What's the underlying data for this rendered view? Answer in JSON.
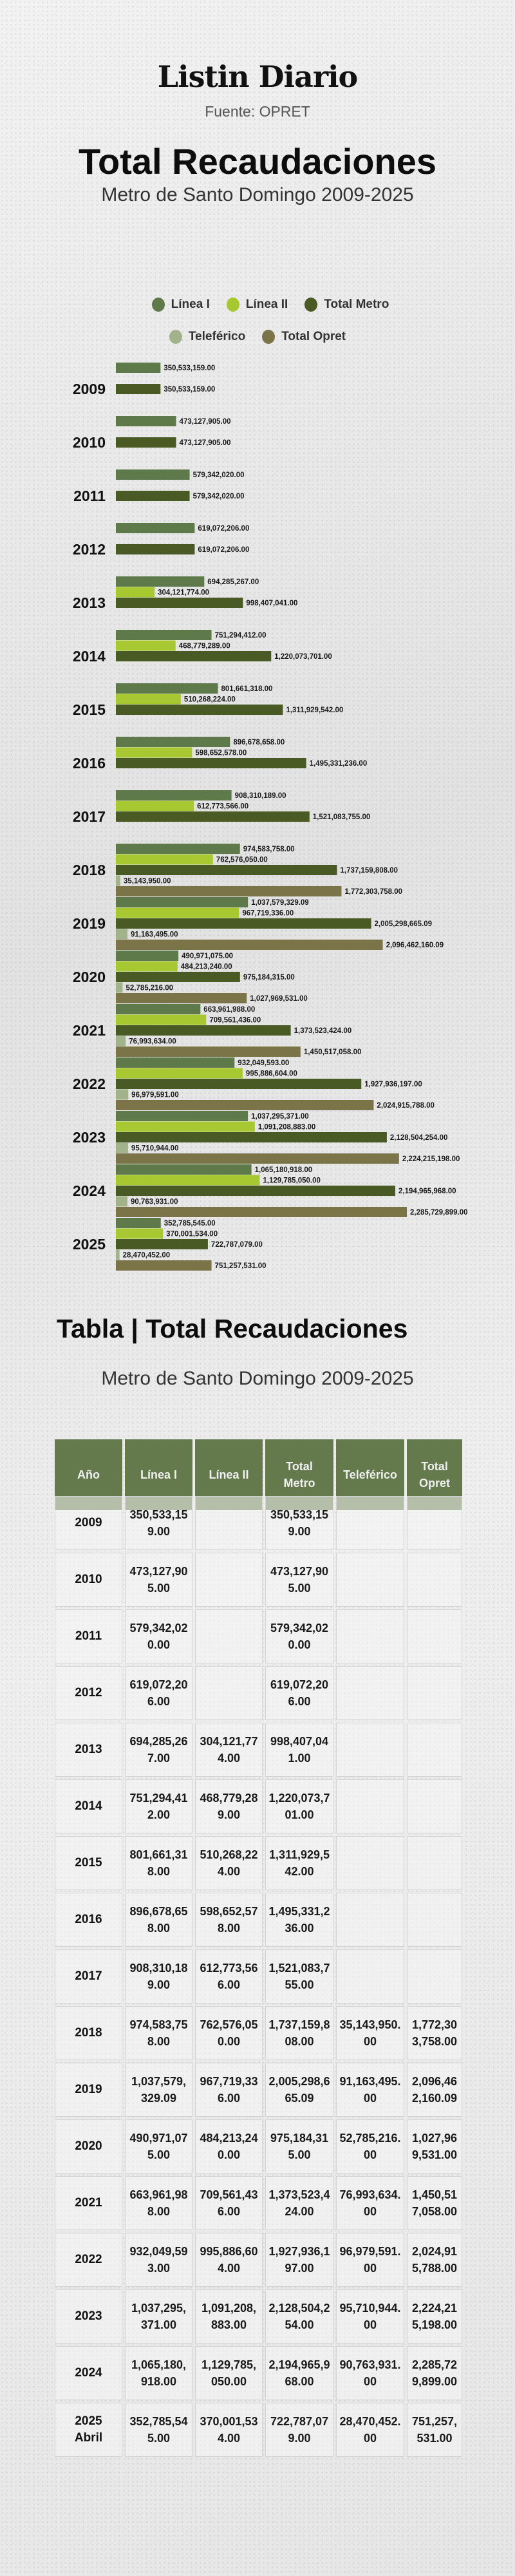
{
  "header": {
    "logo_text": "Listin Diario",
    "source": "Fuente: OPRET",
    "title": "Total Recaudaciones",
    "subtitle": "Metro de Santo Domingo 2009-2025"
  },
  "legend": [
    {
      "label": "Línea I",
      "color": "#5f7a4a"
    },
    {
      "label": "Línea II",
      "color": "#a8c832"
    },
    {
      "label": "Total Metro",
      "color": "#4a5a24"
    },
    {
      "label": "Teleférico",
      "color": "#a2b38c"
    },
    {
      "label": "Total Opret",
      "color": "#7a7448"
    }
  ],
  "chart_data": {
    "type": "bar",
    "orientation": "horizontal",
    "title": "Total Recaudaciones",
    "subtitle": "Metro de Santo Domingo 2009-2025",
    "legend_position": "top",
    "grid": false,
    "xlim": [
      0,
      2300000000
    ],
    "categories": [
      "2009",
      "2010",
      "2011",
      "2012",
      "2013",
      "2014",
      "2015",
      "2016",
      "2017",
      "2018",
      "2019",
      "2020",
      "2021",
      "2022",
      "2023",
      "2024",
      "2025"
    ],
    "series": [
      {
        "name": "Línea I",
        "color": "#5f7a4a",
        "values": [
          350533159,
          473127905,
          579342020,
          619072206,
          694285267,
          751294412,
          801661318,
          896678658,
          908310189,
          974583758,
          1037579329.09,
          490971075,
          663961988,
          932049593,
          1037295371,
          1065180918,
          352785545
        ]
      },
      {
        "name": "Línea II",
        "color": "#a8c832",
        "values": [
          null,
          null,
          null,
          null,
          304121774,
          468779289,
          510268224,
          598652578,
          612773566,
          762576050,
          967719336,
          484213240,
          709561436,
          995886604,
          1091208883,
          1129785050,
          370001534
        ]
      },
      {
        "name": "Total Metro",
        "color": "#4a5a24",
        "values": [
          350533159,
          473127905,
          579342020,
          619072206,
          998407041,
          1220073701,
          1311929542,
          1495331236,
          1521083755,
          1737159808,
          2005298665.09,
          975184315,
          1373523424,
          1927936197,
          2128504254,
          2194965968,
          722787079
        ]
      },
      {
        "name": "Teleférico",
        "color": "#a2b38c",
        "values": [
          null,
          null,
          null,
          null,
          null,
          null,
          null,
          null,
          null,
          35143950,
          91163495,
          52785216,
          76993634,
          96979591,
          95710944,
          90763931,
          28470452
        ]
      },
      {
        "name": "Total Opret",
        "color": "#7a7448",
        "values": [
          null,
          null,
          null,
          null,
          null,
          null,
          null,
          null,
          null,
          1772303758,
          2096462160.09,
          1027969531,
          1450517058,
          2024915788,
          2224215198,
          2285729899,
          751257531
        ]
      }
    ]
  },
  "table": {
    "title": "Tabla | Total Recaudaciones",
    "subtitle": "Metro de Santo Domingo 2009-2025",
    "header_color": "#647a4c",
    "columns": [
      "Año",
      "Línea I",
      "Línea II",
      "Total Metro",
      "Teleférico",
      "Total Opret"
    ],
    "rows": [
      {
        "year": "2009",
        "note": "",
        "cells": [
          "350,533,159.00",
          "",
          "350,533,159.00",
          "",
          ""
        ]
      },
      {
        "year": "2010",
        "note": "",
        "cells": [
          "473,127,905.00",
          "",
          "473,127,905.00",
          "",
          ""
        ]
      },
      {
        "year": "2011",
        "note": "",
        "cells": [
          "579,342,020.00",
          "",
          "579,342,020.00",
          "",
          ""
        ]
      },
      {
        "year": "2012",
        "note": "",
        "cells": [
          "619,072,206.00",
          "",
          "619,072,206.00",
          "",
          ""
        ]
      },
      {
        "year": "2013",
        "note": "",
        "cells": [
          "694,285,267.00",
          "304,121,774.00",
          "998,407,041.00",
          "",
          ""
        ]
      },
      {
        "year": "2014",
        "note": "",
        "cells": [
          "751,294,412.00",
          "468,779,289.00",
          "1,220,073,701.00",
          "",
          ""
        ]
      },
      {
        "year": "2015",
        "note": "",
        "cells": [
          "801,661,318.00",
          "510,268,224.00",
          "1,311,929,542.00",
          "",
          ""
        ]
      },
      {
        "year": "2016",
        "note": "",
        "cells": [
          "896,678,658.00",
          "598,652,578.00",
          "1,495,331,236.00",
          "",
          ""
        ]
      },
      {
        "year": "2017",
        "note": "",
        "cells": [
          "908,310,189.00",
          "612,773,566.00",
          "1,521,083,755.00",
          "",
          ""
        ]
      },
      {
        "year": "2018",
        "note": "",
        "cells": [
          "974,583,758.00",
          "762,576,050.00",
          "1,737,159,808.00",
          "35,143,950.00",
          "1,772,303,758.00"
        ]
      },
      {
        "year": "2019",
        "note": "",
        "cells": [
          "1,037,579,329.09",
          "967,719,336.00",
          "2,005,298,665.09",
          "91,163,495.00",
          "2,096,462,160.09"
        ]
      },
      {
        "year": "2020",
        "note": "",
        "cells": [
          "490,971,075.00",
          "484,213,240.00",
          "975,184,315.00",
          "52,785,216.00",
          "1,027,969,531.00"
        ]
      },
      {
        "year": "2021",
        "note": "",
        "cells": [
          "663,961,988.00",
          "709,561,436.00",
          "1,373,523,424.00",
          "76,993,634.00",
          "1,450,517,058.00"
        ]
      },
      {
        "year": "2022",
        "note": "",
        "cells": [
          "932,049,593.00",
          "995,886,604.00",
          "1,927,936,197.00",
          "96,979,591.00",
          "2,024,915,788.00"
        ]
      },
      {
        "year": "2023",
        "note": "",
        "cells": [
          "1,037,295,371.00",
          "1,091,208,883.00",
          "2,128,504,254.00",
          "95,710,944.00",
          "2,224,215,198.00"
        ]
      },
      {
        "year": "2024",
        "note": "",
        "cells": [
          "1,065,180,918.00",
          "1,129,785,050.00",
          "2,194,965,968.00",
          "90,763,931.00",
          "2,285,729,899.00"
        ]
      },
      {
        "year": "2025",
        "note": "Abril",
        "cells": [
          "352,785,545.00",
          "370,001,534.00",
          "722,787,079.00",
          "28,470,452.00",
          "751,257,531.00"
        ]
      }
    ]
  }
}
